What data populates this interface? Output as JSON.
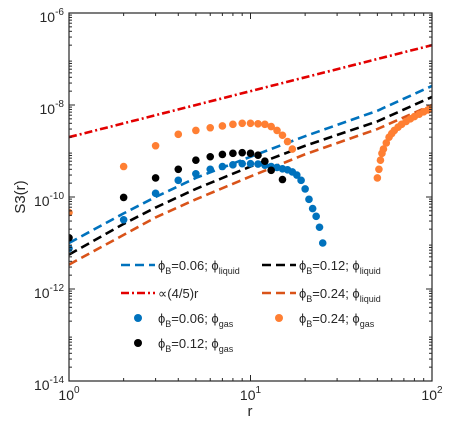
{
  "chart_data": {
    "type": "scatter",
    "title": "",
    "xlabel": "r",
    "ylabel": "S3(r)",
    "xscale": "log",
    "yscale": "log",
    "xlim": [
      1,
      100
    ],
    "ylim": [
      1e-14,
      1e-06
    ],
    "x_ticks": [
      {
        "value": 1,
        "base": "10",
        "exp": "0"
      },
      {
        "value": 10,
        "base": "10",
        "exp": "1"
      },
      {
        "value": 100,
        "base": "10",
        "exp": "2"
      }
    ],
    "y_ticks": [
      {
        "value": 1e-14,
        "base": "10",
        "exp": "-14"
      },
      {
        "value": 1e-12,
        "base": "10",
        "exp": "-12"
      },
      {
        "value": 1e-10,
        "base": "10",
        "exp": "-10"
      },
      {
        "value": 1e-08,
        "base": "10",
        "exp": "-8"
      },
      {
        "value": 1e-06,
        "base": "10",
        "exp": "-6"
      }
    ],
    "grid": false,
    "legend_position": "bottom-center",
    "series": [
      {
        "id": "liquid_006",
        "legend": {
          "prefix": "ϕ",
          "sub1": "B",
          "mid": "=0.06; ϕ",
          "sub2": "liquid"
        },
        "kind": "line",
        "style": "dashed",
        "color": "#0072BD",
        "points": [
          [
            1,
            1e-11
          ],
          [
            2,
            4.4e-11
          ],
          [
            3,
            1e-10
          ],
          [
            5,
            2.6e-10
          ],
          [
            10,
            7.5e-10
          ],
          [
            20,
            2.1e-09
          ],
          [
            50,
            7.5e-09
          ],
          [
            100,
            2.6e-08
          ]
        ]
      },
      {
        "id": "liquid_012",
        "legend": {
          "prefix": "ϕ",
          "sub1": "B",
          "mid": "=0.12; ϕ",
          "sub2": "liquid"
        },
        "kind": "line",
        "style": "dashed",
        "color": "#000000",
        "points": [
          [
            1,
            5.6e-12
          ],
          [
            2,
            2.6e-11
          ],
          [
            3,
            5.9e-11
          ],
          [
            5,
            1.5e-10
          ],
          [
            10,
            4.6e-10
          ],
          [
            20,
            1.3e-09
          ],
          [
            50,
            4.4e-09
          ],
          [
            100,
            1.5e-08
          ]
        ]
      },
      {
        "id": "reference",
        "legend": {
          "text": "∝(4/5)r"
        },
        "kind": "line",
        "style": "dashdot",
        "color": "#E30000",
        "points": [
          [
            1,
            2e-09
          ],
          [
            100,
            2e-07
          ]
        ]
      },
      {
        "id": "liquid_024",
        "legend": {
          "prefix": "ϕ",
          "sub1": "B",
          "mid": "=0.24; ϕ",
          "sub2": "liquid"
        },
        "kind": "line",
        "style": "dashed",
        "color": "#D95319",
        "points": [
          [
            1,
            3.4e-12
          ],
          [
            2,
            1.5e-11
          ],
          [
            3,
            3.6e-11
          ],
          [
            5,
            8.9e-11
          ],
          [
            10,
            2.8e-10
          ],
          [
            20,
            8.5e-10
          ],
          [
            50,
            3e-09
          ],
          [
            100,
            1e-08
          ]
        ]
      },
      {
        "id": "gas_006",
        "legend": {
          "prefix": "ϕ",
          "sub1": "B",
          "mid": "=0.06; ϕ",
          "sub2": "gas"
        },
        "kind": "scatter",
        "color": "#0072BD",
        "points": [
          [
            1,
            7.6e-12
          ],
          [
            2,
            3.2e-11
          ],
          [
            3,
            1.2e-10
          ],
          [
            4,
            2.3e-10
          ],
          [
            5,
            3.2e-10
          ],
          [
            6,
            4e-10
          ],
          [
            7,
            4.6e-10
          ],
          [
            8,
            5e-10
          ],
          [
            9,
            5.3e-10
          ],
          [
            10,
            5.3e-10
          ],
          [
            11,
            5.2e-10
          ],
          [
            12,
            4.9e-10
          ],
          [
            13,
            4.6e-10
          ],
          [
            14,
            4.4e-10
          ],
          [
            15,
            4.1e-10
          ],
          [
            16,
            3.9e-10
          ],
          [
            17,
            3.5e-10
          ],
          [
            18,
            3e-10
          ],
          [
            19,
            2.3e-10
          ],
          [
            20,
            1.5e-10
          ],
          [
            21,
            8.9e-11
          ],
          [
            22,
            5.6e-11
          ],
          [
            23,
            3.8e-11
          ],
          [
            24,
            2.2e-11
          ],
          [
            25,
            1e-11
          ]
        ]
      },
      {
        "id": "gas_012",
        "legend": {
          "prefix": "ϕ",
          "sub1": "B",
          "mid": "=0.12; ϕ",
          "sub2": "gas"
        },
        "kind": "scatter",
        "color": "#000000",
        "points": [
          [
            1,
            1.3e-11
          ],
          [
            2,
            9.8e-11
          ],
          [
            3,
            2.6e-10
          ],
          [
            4,
            4e-10
          ],
          [
            5,
            6.3e-10
          ],
          [
            6,
            7.5e-10
          ],
          [
            7,
            8.4e-10
          ],
          [
            8,
            8.9e-10
          ],
          [
            9,
            9.2e-10
          ],
          [
            10,
            8.9e-10
          ],
          [
            11,
            8.1e-10
          ],
          [
            12,
            6e-10
          ],
          [
            13,
            3.8e-10
          ],
          [
            15,
            2.4e-10
          ]
        ]
      },
      {
        "id": "gas_024",
        "legend": {
          "prefix": "ϕ",
          "sub1": "B",
          "mid": "=0.24; ϕ",
          "sub2": "gas"
        },
        "kind": "scatter",
        "color": "#FF7F33",
        "points": [
          [
            1,
            4.6e-11
          ],
          [
            2,
            4.6e-10
          ],
          [
            3,
            1.3e-09
          ],
          [
            4,
            2.3e-09
          ],
          [
            5,
            2.8e-09
          ],
          [
            6,
            3.2e-09
          ],
          [
            7,
            3.5e-09
          ],
          [
            8,
            3.8e-09
          ],
          [
            9,
            4e-09
          ],
          [
            10,
            4e-09
          ],
          [
            11,
            3.9e-09
          ],
          [
            12,
            3.8e-09
          ],
          [
            13,
            3.4e-09
          ],
          [
            14,
            2.8e-09
          ],
          [
            15,
            2.2e-09
          ],
          [
            16,
            1.6e-09
          ],
          [
            17,
            1.1e-09
          ],
          [
            50,
            2.6e-10
          ],
          [
            51,
            4e-10
          ],
          [
            52,
            6.3e-10
          ],
          [
            53,
            8.9e-10
          ],
          [
            54,
            1.1e-09
          ],
          [
            56,
            1.5e-09
          ],
          [
            58,
            2e-09
          ],
          [
            60,
            2.4e-09
          ],
          [
            62,
            2.8e-09
          ],
          [
            65,
            3.3e-09
          ],
          [
            68,
            3.8e-09
          ],
          [
            72,
            4.4e-09
          ],
          [
            76,
            5e-09
          ],
          [
            80,
            5.6e-09
          ],
          [
            85,
            6.3e-09
          ],
          [
            90,
            7.1e-09
          ],
          [
            95,
            7.8e-09
          ],
          [
            100,
            8.5e-09
          ]
        ]
      }
    ]
  }
}
